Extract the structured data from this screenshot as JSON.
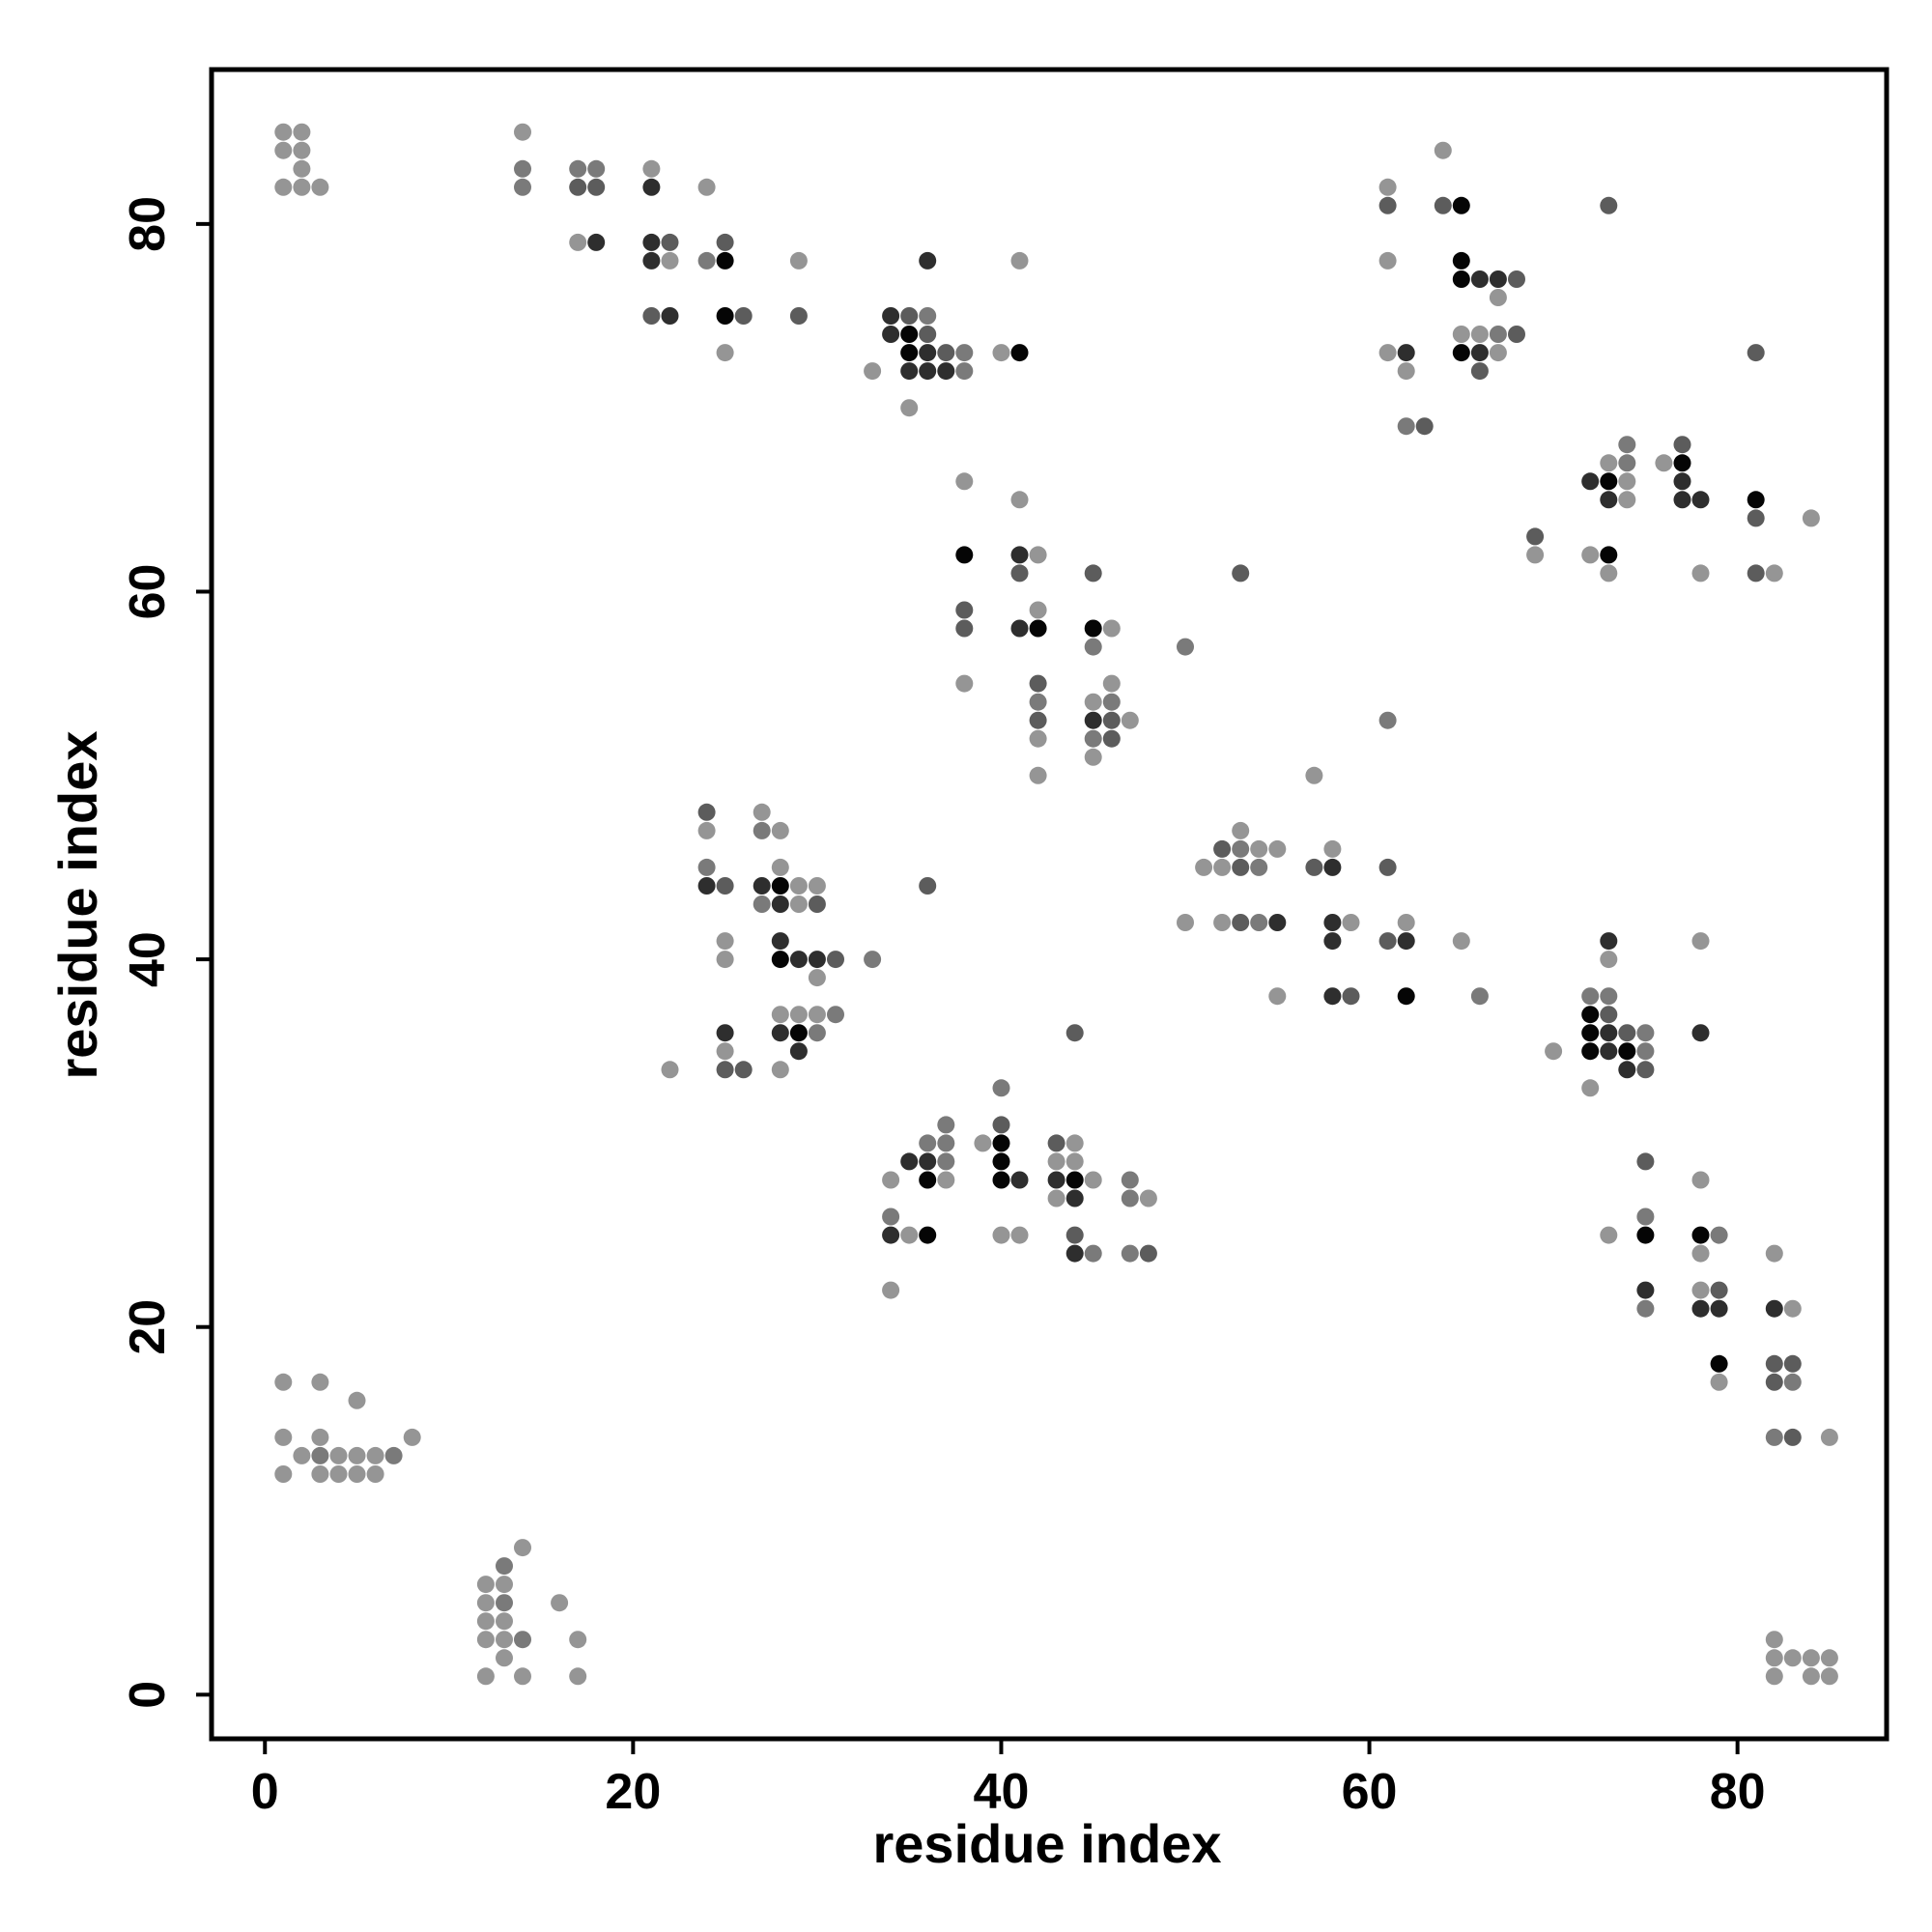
{
  "chart_data": {
    "type": "scatter",
    "title": "",
    "xlabel": "residue index",
    "ylabel": "residue index",
    "xlim": [
      -2.9,
      88.1
    ],
    "ylim": [
      -2.4,
      88.4
    ],
    "xticks": [
      0,
      20,
      40,
      60,
      80
    ],
    "yticks": [
      0,
      20,
      40,
      60,
      80
    ],
    "grid": false,
    "legend": "none",
    "shades": {
      "1": "#959595",
      "2": "#7a7a7a",
      "3": "#5c5c5c",
      "4": "#2e2e2e",
      "5": "#050505"
    },
    "points": [
      [
        1,
        85,
        1
      ],
      [
        2,
        85,
        1
      ],
      [
        1,
        84,
        1
      ],
      [
        2,
        84,
        1
      ],
      [
        2,
        83,
        1
      ],
      [
        1,
        82,
        1
      ],
      [
        2,
        82,
        1
      ],
      [
        3,
        82,
        1
      ],
      [
        14,
        85,
        1
      ],
      [
        14,
        83,
        2
      ],
      [
        14,
        82,
        2
      ],
      [
        17,
        83,
        2
      ],
      [
        18,
        83,
        2
      ],
      [
        17,
        82,
        3
      ],
      [
        18,
        82,
        3
      ],
      [
        17,
        79,
        1
      ],
      [
        18,
        79,
        4
      ],
      [
        21,
        83,
        1
      ],
      [
        21,
        82,
        4
      ],
      [
        24,
        82,
        1
      ],
      [
        21,
        79,
        4
      ],
      [
        22,
        79,
        3
      ],
      [
        21,
        78,
        4
      ],
      [
        22,
        78,
        1
      ],
      [
        24,
        78,
        2
      ],
      [
        25,
        78,
        5
      ],
      [
        25,
        79,
        3
      ],
      [
        29,
        78,
        1
      ],
      [
        21,
        75,
        3
      ],
      [
        22,
        75,
        4
      ],
      [
        25,
        75,
        5
      ],
      [
        26,
        75,
        3
      ],
      [
        29,
        75,
        3
      ],
      [
        25,
        73,
        1
      ],
      [
        34,
        75,
        4
      ],
      [
        35,
        75,
        3
      ],
      [
        36,
        75,
        2
      ],
      [
        34,
        74,
        4
      ],
      [
        35,
        74,
        5
      ],
      [
        36,
        74,
        3
      ],
      [
        35,
        73,
        5
      ],
      [
        36,
        73,
        4
      ],
      [
        37,
        73,
        3
      ],
      [
        38,
        73,
        2
      ],
      [
        35,
        72,
        4
      ],
      [
        36,
        72,
        4
      ],
      [
        37,
        72,
        4
      ],
      [
        38,
        72,
        2
      ],
      [
        33,
        72,
        1
      ],
      [
        35,
        70,
        1
      ],
      [
        36,
        78,
        4
      ],
      [
        40,
        73,
        1
      ],
      [
        41,
        73,
        5
      ],
      [
        41,
        78,
        1
      ],
      [
        38,
        66,
        1
      ],
      [
        38,
        62,
        5
      ],
      [
        41,
        65,
        1
      ],
      [
        41,
        62,
        4
      ],
      [
        42,
        62,
        1
      ],
      [
        41,
        61,
        3
      ],
      [
        38,
        59,
        3
      ],
      [
        38,
        58,
        3
      ],
      [
        42,
        59,
        1
      ],
      [
        41,
        58,
        4
      ],
      [
        42,
        58,
        5
      ],
      [
        38,
        55,
        1
      ],
      [
        45,
        61,
        3
      ],
      [
        45,
        58,
        5
      ],
      [
        46,
        58,
        1
      ],
      [
        45,
        57,
        2
      ],
      [
        50,
        57,
        2
      ],
      [
        42,
        55,
        3
      ],
      [
        46,
        55,
        1
      ],
      [
        42,
        54,
        2
      ],
      [
        45,
        54,
        1
      ],
      [
        46,
        54,
        2
      ],
      [
        42,
        53,
        3
      ],
      [
        45,
        53,
        4
      ],
      [
        46,
        53,
        3
      ],
      [
        47,
        53,
        1
      ],
      [
        42,
        52,
        1
      ],
      [
        45,
        52,
        2
      ],
      [
        46,
        52,
        3
      ],
      [
        45,
        51,
        1
      ],
      [
        42,
        50,
        1
      ],
      [
        53,
        61,
        3
      ],
      [
        24,
        48,
        3
      ],
      [
        27,
        48,
        1
      ],
      [
        24,
        47,
        1
      ],
      [
        27,
        47,
        2
      ],
      [
        28,
        47,
        1
      ],
      [
        24,
        45,
        2
      ],
      [
        28,
        45,
        1
      ],
      [
        24,
        44,
        4
      ],
      [
        25,
        44,
        3
      ],
      [
        27,
        44,
        4
      ],
      [
        28,
        44,
        5
      ],
      [
        29,
        44,
        1
      ],
      [
        30,
        44,
        1
      ],
      [
        27,
        43,
        2
      ],
      [
        28,
        43,
        4
      ],
      [
        29,
        43,
        1
      ],
      [
        30,
        43,
        3
      ],
      [
        36,
        44,
        3
      ],
      [
        25,
        41,
        1
      ],
      [
        28,
        41,
        4
      ],
      [
        25,
        40,
        1
      ],
      [
        28,
        40,
        5
      ],
      [
        29,
        40,
        4
      ],
      [
        30,
        40,
        4
      ],
      [
        31,
        40,
        3
      ],
      [
        33,
        40,
        2
      ],
      [
        30,
        39,
        1
      ],
      [
        28,
        37,
        1
      ],
      [
        29,
        37,
        1
      ],
      [
        30,
        37,
        1
      ],
      [
        31,
        37,
        2
      ],
      [
        25,
        36,
        4
      ],
      [
        28,
        36,
        4
      ],
      [
        29,
        36,
        5
      ],
      [
        30,
        36,
        2
      ],
      [
        25,
        35,
        1
      ],
      [
        29,
        35,
        4
      ],
      [
        22,
        34,
        1
      ],
      [
        25,
        34,
        3
      ],
      [
        26,
        34,
        3
      ],
      [
        28,
        34,
        1
      ],
      [
        50,
        42,
        1
      ],
      [
        51,
        45,
        1
      ],
      [
        52,
        46,
        3
      ],
      [
        53,
        46,
        2
      ],
      [
        54,
        46,
        1
      ],
      [
        55,
        46,
        1
      ],
      [
        53,
        47,
        1
      ],
      [
        52,
        45,
        1
      ],
      [
        53,
        45,
        3
      ],
      [
        54,
        45,
        2
      ],
      [
        52,
        42,
        1
      ],
      [
        53,
        42,
        3
      ],
      [
        54,
        42,
        2
      ],
      [
        55,
        42,
        4
      ],
      [
        55,
        38,
        1
      ],
      [
        57,
        50,
        1
      ],
      [
        57,
        45,
        3
      ],
      [
        58,
        46,
        1
      ],
      [
        58,
        45,
        4
      ],
      [
        58,
        42,
        4
      ],
      [
        59,
        42,
        1
      ],
      [
        58,
        41,
        4
      ],
      [
        58,
        38,
        4
      ],
      [
        59,
        38,
        3
      ],
      [
        61,
        53,
        2
      ],
      [
        61,
        45,
        3
      ],
      [
        61,
        41,
        3
      ],
      [
        62,
        42,
        1
      ],
      [
        62,
        41,
        4
      ],
      [
        62,
        38,
        5
      ],
      [
        65,
        41,
        1
      ],
      [
        66,
        38,
        2
      ],
      [
        61,
        82,
        1
      ],
      [
        61,
        81,
        3
      ],
      [
        64,
        84,
        1
      ],
      [
        64,
        81,
        3
      ],
      [
        65,
        81,
        5
      ],
      [
        61,
        78,
        1
      ],
      [
        65,
        78,
        5
      ],
      [
        65,
        77,
        5
      ],
      [
        66,
        77,
        4
      ],
      [
        67,
        77,
        4
      ],
      [
        68,
        77,
        3
      ],
      [
        67,
        76,
        1
      ],
      [
        65,
        74,
        1
      ],
      [
        66,
        74,
        1
      ],
      [
        67,
        74,
        2
      ],
      [
        68,
        74,
        3
      ],
      [
        61,
        73,
        1
      ],
      [
        62,
        73,
        4
      ],
      [
        65,
        73,
        5
      ],
      [
        66,
        73,
        4
      ],
      [
        67,
        73,
        1
      ],
      [
        62,
        72,
        1
      ],
      [
        66,
        72,
        3
      ],
      [
        62,
        69,
        2
      ],
      [
        63,
        69,
        3
      ],
      [
        73,
        81,
        3
      ],
      [
        81,
        73,
        3
      ],
      [
        74,
        68,
        2
      ],
      [
        77,
        68,
        3
      ],
      [
        73,
        67,
        1
      ],
      [
        74,
        67,
        2
      ],
      [
        76,
        67,
        1
      ],
      [
        77,
        67,
        5
      ],
      [
        72,
        66,
        4
      ],
      [
        73,
        66,
        5
      ],
      [
        74,
        66,
        1
      ],
      [
        77,
        66,
        4
      ],
      [
        73,
        65,
        4
      ],
      [
        74,
        65,
        1
      ],
      [
        77,
        65,
        4
      ],
      [
        78,
        65,
        4
      ],
      [
        81,
        65,
        5
      ],
      [
        81,
        64,
        3
      ],
      [
        84,
        64,
        1
      ],
      [
        69,
        63,
        3
      ],
      [
        69,
        62,
        1
      ],
      [
        72,
        62,
        1
      ],
      [
        73,
        62,
        5
      ],
      [
        73,
        61,
        1
      ],
      [
        78,
        61,
        1
      ],
      [
        81,
        61,
        3
      ],
      [
        82,
        61,
        1
      ],
      [
        73,
        41,
        4
      ],
      [
        73,
        40,
        1
      ],
      [
        78,
        41,
        1
      ],
      [
        72,
        38,
        2
      ],
      [
        73,
        38,
        2
      ],
      [
        72,
        37,
        5
      ],
      [
        73,
        37,
        3
      ],
      [
        72,
        36,
        5
      ],
      [
        73,
        36,
        4
      ],
      [
        74,
        36,
        3
      ],
      [
        75,
        36,
        2
      ],
      [
        78,
        36,
        4
      ],
      [
        70,
        35,
        1
      ],
      [
        72,
        35,
        5
      ],
      [
        73,
        35,
        4
      ],
      [
        74,
        35,
        5
      ],
      [
        75,
        35,
        2
      ],
      [
        74,
        34,
        4
      ],
      [
        75,
        34,
        3
      ],
      [
        72,
        33,
        1
      ],
      [
        75,
        29,
        3
      ],
      [
        78,
        28,
        1
      ],
      [
        75,
        26,
        2
      ],
      [
        73,
        25,
        1
      ],
      [
        75,
        25,
        5
      ],
      [
        78,
        25,
        5
      ],
      [
        79,
        25,
        2
      ],
      [
        78,
        24,
        1
      ],
      [
        75,
        22,
        4
      ],
      [
        78,
        22,
        1
      ],
      [
        79,
        22,
        3
      ],
      [
        75,
        21,
        2
      ],
      [
        78,
        21,
        4
      ],
      [
        79,
        21,
        4
      ],
      [
        82,
        24,
        1
      ],
      [
        82,
        21,
        4
      ],
      [
        83,
        21,
        1
      ],
      [
        79,
        18,
        5
      ],
      [
        82,
        18,
        3
      ],
      [
        83,
        18,
        3
      ],
      [
        79,
        17,
        1
      ],
      [
        82,
        17,
        3
      ],
      [
        83,
        17,
        2
      ],
      [
        82,
        14,
        2
      ],
      [
        83,
        14,
        3
      ],
      [
        85,
        14,
        1
      ],
      [
        34,
        28,
        1
      ],
      [
        35,
        29,
        4
      ],
      [
        36,
        29,
        4
      ],
      [
        37,
        29,
        2
      ],
      [
        36,
        30,
        2
      ],
      [
        37,
        30,
        2
      ],
      [
        37,
        31,
        2
      ],
      [
        36,
        28,
        5
      ],
      [
        37,
        28,
        1
      ],
      [
        34,
        26,
        2
      ],
      [
        34,
        25,
        4
      ],
      [
        35,
        25,
        1
      ],
      [
        36,
        25,
        5
      ],
      [
        34,
        22,
        1
      ],
      [
        39,
        30,
        1
      ],
      [
        40,
        31,
        3
      ],
      [
        40,
        30,
        5
      ],
      [
        40,
        29,
        5
      ],
      [
        40,
        28,
        5
      ],
      [
        41,
        28,
        4
      ],
      [
        40,
        33,
        2
      ],
      [
        40,
        25,
        1
      ],
      [
        41,
        25,
        1
      ],
      [
        43,
        30,
        3
      ],
      [
        44,
        30,
        1
      ],
      [
        43,
        29,
        1
      ],
      [
        44,
        29,
        1
      ],
      [
        43,
        28,
        4
      ],
      [
        44,
        28,
        5
      ],
      [
        45,
        28,
        1
      ],
      [
        43,
        27,
        1
      ],
      [
        44,
        27,
        4
      ],
      [
        44,
        25,
        3
      ],
      [
        44,
        24,
        4
      ],
      [
        45,
        24,
        2
      ],
      [
        44,
        36,
        3
      ],
      [
        47,
        28,
        2
      ],
      [
        47,
        27,
        2
      ],
      [
        48,
        27,
        1
      ],
      [
        47,
        24,
        2
      ],
      [
        48,
        24,
        3
      ],
      [
        1,
        17,
        1
      ],
      [
        3,
        17,
        1
      ],
      [
        5,
        16,
        1
      ],
      [
        1,
        14,
        1
      ],
      [
        3,
        14,
        1
      ],
      [
        8,
        14,
        1
      ],
      [
        2,
        13,
        1
      ],
      [
        3,
        13,
        2
      ],
      [
        4,
        13,
        1
      ],
      [
        5,
        13,
        1
      ],
      [
        6,
        13,
        1
      ],
      [
        7,
        13,
        2
      ],
      [
        1,
        12,
        1
      ],
      [
        3,
        12,
        1
      ],
      [
        4,
        12,
        1
      ],
      [
        5,
        12,
        1
      ],
      [
        6,
        12,
        1
      ],
      [
        12,
        6,
        1
      ],
      [
        13,
        6,
        1
      ],
      [
        13,
        7,
        2
      ],
      [
        14,
        8,
        1
      ],
      [
        12,
        5,
        1
      ],
      [
        13,
        5,
        2
      ],
      [
        16,
        5,
        1
      ],
      [
        12,
        4,
        1
      ],
      [
        13,
        4,
        1
      ],
      [
        12,
        3,
        1
      ],
      [
        13,
        3,
        1
      ],
      [
        14,
        3,
        2
      ],
      [
        17,
        3,
        1
      ],
      [
        13,
        2,
        1
      ],
      [
        12,
        1,
        1
      ],
      [
        14,
        1,
        1
      ],
      [
        17,
        1,
        1
      ],
      [
        82,
        3,
        1
      ],
      [
        82,
        2,
        1
      ],
      [
        83,
        2,
        1
      ],
      [
        84,
        2,
        1
      ],
      [
        85,
        2,
        1
      ],
      [
        82,
        1,
        1
      ],
      [
        84,
        1,
        1
      ],
      [
        85,
        1,
        1
      ]
    ]
  }
}
